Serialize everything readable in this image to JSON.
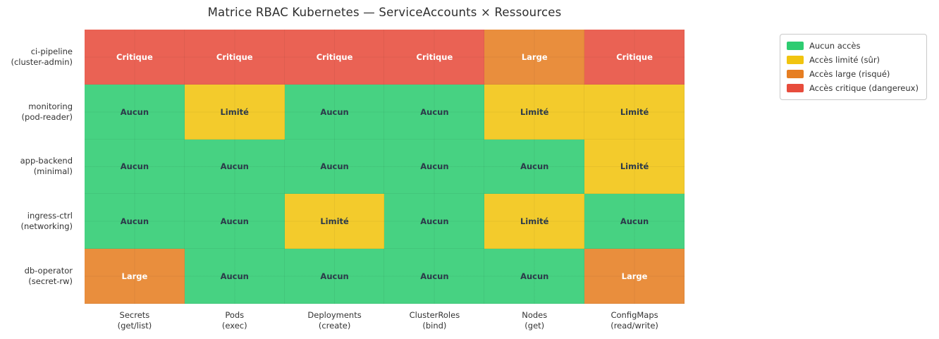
{
  "chart_data": {
    "type": "heatmap",
    "title": "Matrice RBAC Kubernetes — ServiceAccounts × Ressources",
    "rows": [
      {
        "name": "ci-pipeline",
        "role": "(cluster-admin)"
      },
      {
        "name": "monitoring",
        "role": "(pod-reader)"
      },
      {
        "name": "app-backend",
        "role": "(minimal)"
      },
      {
        "name": "ingress-ctrl",
        "role": "(networking)"
      },
      {
        "name": "db-operator",
        "role": "(secret-rw)"
      }
    ],
    "columns": [
      {
        "name": "Secrets",
        "verb": "(get/list)"
      },
      {
        "name": "Pods",
        "verb": "(exec)"
      },
      {
        "name": "Deployments",
        "verb": "(create)"
      },
      {
        "name": "ClusterRoles",
        "verb": "(bind)"
      },
      {
        "name": "Nodes",
        "verb": "(get)"
      },
      {
        "name": "ConfigMaps",
        "verb": "(read/write)"
      }
    ],
    "values": [
      [
        "critique",
        "critique",
        "critique",
        "critique",
        "large",
        "critique"
      ],
      [
        "aucun",
        "limite",
        "aucun",
        "aucun",
        "limite",
        "limite"
      ],
      [
        "aucun",
        "aucun",
        "aucun",
        "aucun",
        "aucun",
        "limite"
      ],
      [
        "aucun",
        "aucun",
        "limite",
        "aucun",
        "limite",
        "aucun"
      ],
      [
        "large",
        "aucun",
        "aucun",
        "aucun",
        "aucun",
        "large"
      ]
    ],
    "levels": {
      "aucun": {
        "cell_label": "Aucun",
        "color": "#2ecc71",
        "text_color": "#2c3a4a"
      },
      "limite": {
        "cell_label": "Limité",
        "color": "#f1c40f",
        "text_color": "#2c3a4a"
      },
      "large": {
        "cell_label": "Large",
        "color": "#e67e22",
        "text_color": "#ffffff"
      },
      "critique": {
        "cell_label": "Critique",
        "color": "#e74c3c",
        "text_color": "#ffffff"
      }
    },
    "legend": {
      "position": "outside-top-right",
      "entries": [
        {
          "level": "aucun",
          "label": "Aucun accès"
        },
        {
          "level": "limite",
          "label": "Accès limité (sûr)"
        },
        {
          "level": "large",
          "label": "Accès large (risqué)"
        },
        {
          "level": "critique",
          "label": "Accès critique (dangereux)"
        }
      ]
    },
    "grid": true,
    "axis_spines": false
  }
}
